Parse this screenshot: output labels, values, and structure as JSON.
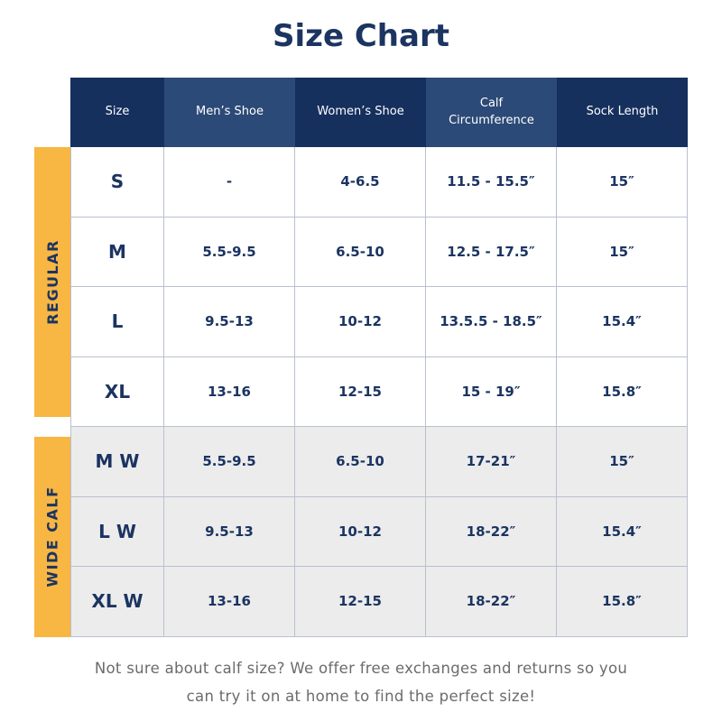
{
  "title": "Size Chart",
  "table": {
    "columns": [
      "Size",
      "Men’s Shoe",
      "Women’s Shoe",
      "Calf Circumference",
      "Sock Length"
    ],
    "groups": [
      {
        "label": "REGULAR",
        "rows": [
          [
            "S",
            "-",
            "4-6.5",
            "11.5 - 15.5″",
            "15″"
          ],
          [
            "M",
            "5.5-9.5",
            "6.5-10",
            "12.5 - 17.5″",
            "15″"
          ],
          [
            "L",
            "9.5-13",
            "10-12",
            "13.5.5 - 18.5″",
            "15.4″"
          ],
          [
            "XL",
            "13-16",
            "12-15",
            "15 - 19″",
            "15.8″"
          ]
        ]
      },
      {
        "label": "WIDE CALF",
        "rows": [
          [
            "M W",
            "5.5-9.5",
            "6.5-10",
            "17-21″",
            "15″"
          ],
          [
            "L W",
            "9.5-13",
            "10-12",
            "18-22″",
            "15.4″"
          ],
          [
            "XL W",
            "13-16",
            "12-15",
            "18-22″",
            "15.8″"
          ]
        ]
      }
    ]
  },
  "footer": {
    "lines": [
      "Not sure about calf size? We offer free exchanges and returns so you",
      "can try it on at home to find the perfect size!"
    ]
  }
}
